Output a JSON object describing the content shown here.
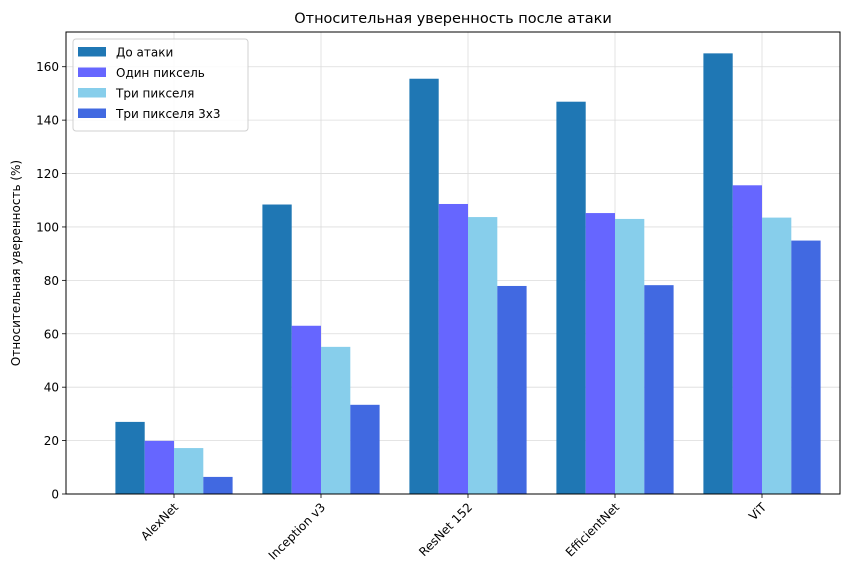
{
  "chart_data": {
    "type": "bar",
    "title": "Относительная уверенность после атаки",
    "xlabel": "",
    "ylabel": "Относительная уверенность (%)",
    "categories": [
      "AlexNet",
      "Inception v3",
      "ResNet 152",
      "EfficientNet",
      "ViT"
    ],
    "series": [
      {
        "name": "До атаки",
        "color": "#1f77b4",
        "values": [
          27.0,
          108.4,
          155.5,
          146.9,
          165.0
        ]
      },
      {
        "name": "Один пиксель",
        "color": "#6666ff",
        "values": [
          19.9,
          63.0,
          108.6,
          105.2,
          115.6
        ]
      },
      {
        "name": "Три пикселя",
        "color": "#87ceeb",
        "values": [
          17.2,
          55.1,
          103.7,
          103.0,
          103.5
        ]
      },
      {
        "name": "Три пикселя 3x3",
        "color": "#4169e1",
        "values": [
          6.4,
          33.4,
          77.9,
          78.2,
          94.9
        ]
      }
    ],
    "ylim": [
      0,
      173
    ],
    "yticks": [
      0,
      20,
      40,
      60,
      80,
      100,
      120,
      140,
      160
    ],
    "grid": true,
    "legend_position": "upper left",
    "xtick_rotation": 45
  }
}
